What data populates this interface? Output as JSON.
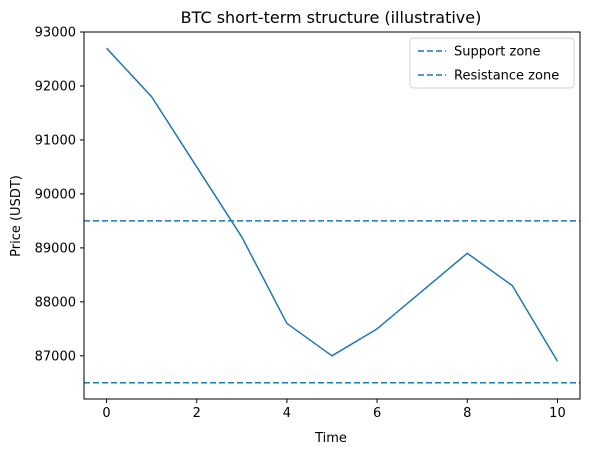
{
  "chart_data": {
    "type": "line",
    "title": "BTC short-term structure (illustrative)",
    "xlabel": "Time",
    "ylabel": "Price (USDT)",
    "xlim": [
      -0.5,
      10.5
    ],
    "ylim": [
      86200,
      93000
    ],
    "x_ticks": [
      0,
      2,
      4,
      6,
      8,
      10
    ],
    "y_ticks": [
      87000,
      88000,
      89000,
      90000,
      91000,
      92000,
      93000
    ],
    "grid": false,
    "legend_position": "top-right",
    "series": [
      {
        "type": "line",
        "color": "#1f77b4",
        "x": [
          0,
          1,
          2,
          3,
          4,
          5,
          6,
          7,
          8,
          9,
          10
        ],
        "y": [
          92700,
          91800,
          90500,
          89200,
          87600,
          87000,
          87500,
          88200,
          88900,
          88300,
          86900
        ]
      }
    ],
    "reference_lines": [
      {
        "name": "Support zone",
        "orientation": "horizontal",
        "y": 86500,
        "style": "dashed",
        "color": "#1f77b4"
      },
      {
        "name": "Resistance zone",
        "orientation": "horizontal",
        "y": 89500,
        "style": "dashed",
        "color": "#1f77b4"
      }
    ]
  }
}
